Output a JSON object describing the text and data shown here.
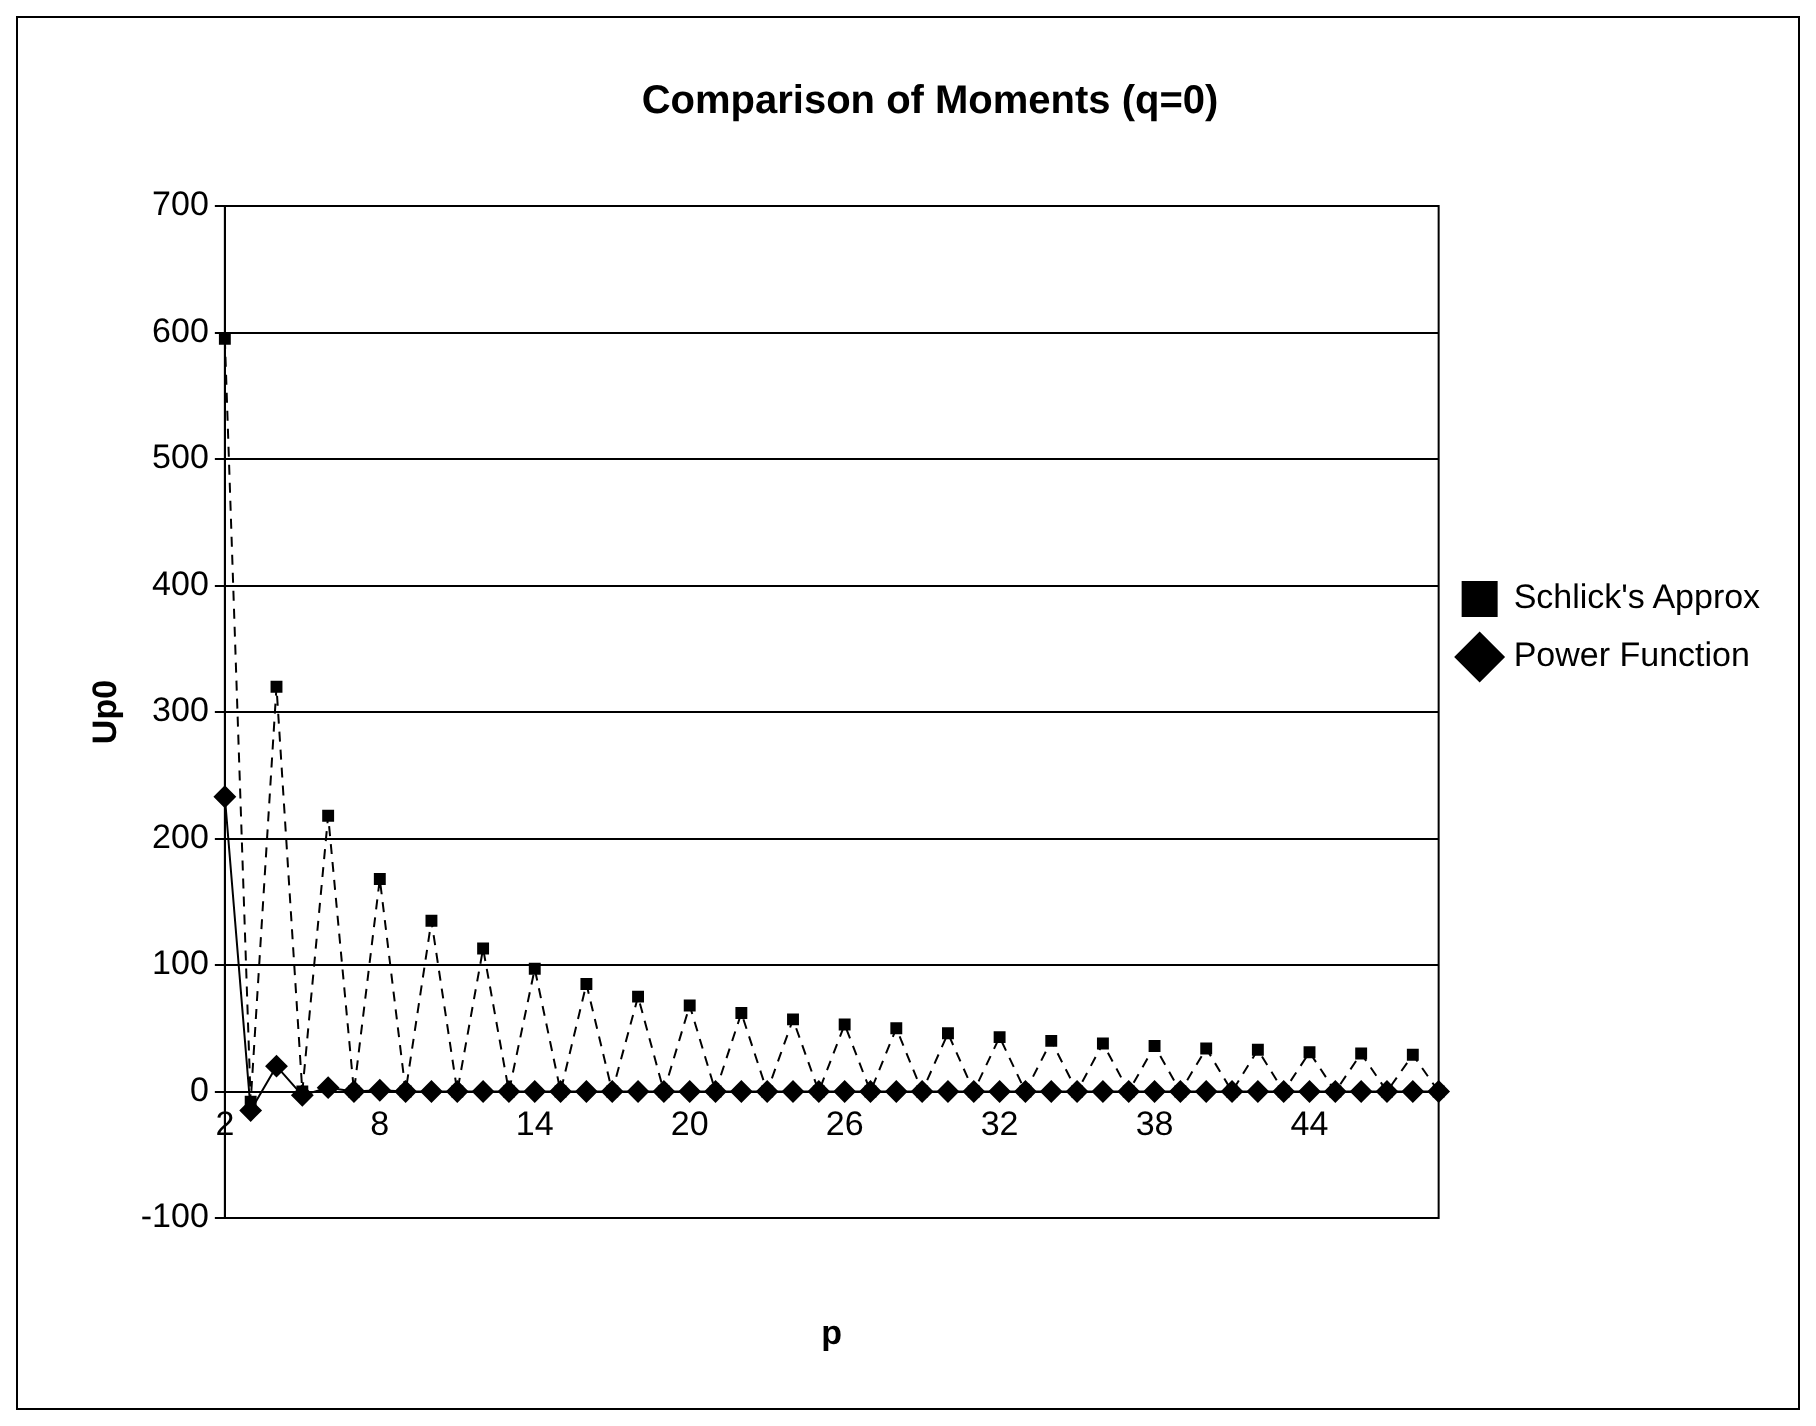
{
  "chart_data": {
    "type": "line",
    "title": "Comparison of Moments (q=0)",
    "xlabel": "p",
    "ylabel": "Up0",
    "categories": [
      "2",
      null,
      null,
      null,
      null,
      null,
      "8",
      null,
      null,
      null,
      null,
      null,
      "14",
      null,
      null,
      null,
      null,
      null,
      "20",
      null,
      null,
      null,
      null,
      null,
      "26",
      null,
      null,
      null,
      null,
      null,
      "32",
      null,
      null,
      null,
      null,
      null,
      "38",
      null,
      null,
      null,
      null,
      null,
      "44",
      null,
      null,
      null,
      null,
      null
    ],
    "series": [
      {
        "name": "Power Function",
        "color": "#000000",
        "marker": "diamond",
        "line_style": "solid",
        "values": [
          233,
          -15,
          20,
          -3,
          3,
          0,
          1,
          0,
          0,
          0,
          0,
          0,
          0,
          0,
          0,
          0,
          0,
          0,
          0,
          0,
          0,
          0,
          0,
          0,
          0,
          0,
          0,
          0,
          0,
          0,
          0,
          0,
          0,
          0,
          0,
          0,
          0,
          0,
          0,
          0,
          0,
          0,
          0,
          0,
          0,
          0,
          0,
          0
        ]
      },
      {
        "name": "Schlick's Approx",
        "color": "#000000",
        "marker": "square",
        "line_style": "dashed",
        "values": [
          595,
          -8,
          320,
          0,
          218,
          0,
          168,
          0,
          135,
          0,
          113,
          0,
          97,
          0,
          85,
          0,
          75,
          0,
          68,
          0,
          62,
          0,
          57,
          0,
          53,
          0,
          50,
          0,
          46,
          0,
          43,
          0,
          40,
          0,
          38,
          0,
          36,
          0,
          34,
          0,
          33,
          0,
          31,
          0,
          30,
          0,
          29,
          0
        ]
      }
    ],
    "ylim": [
      -100,
      700
    ],
    "yticks": [
      -100,
      0,
      100,
      200,
      300,
      400,
      500,
      600,
      700
    ],
    "grid": "y",
    "legend": "right"
  }
}
